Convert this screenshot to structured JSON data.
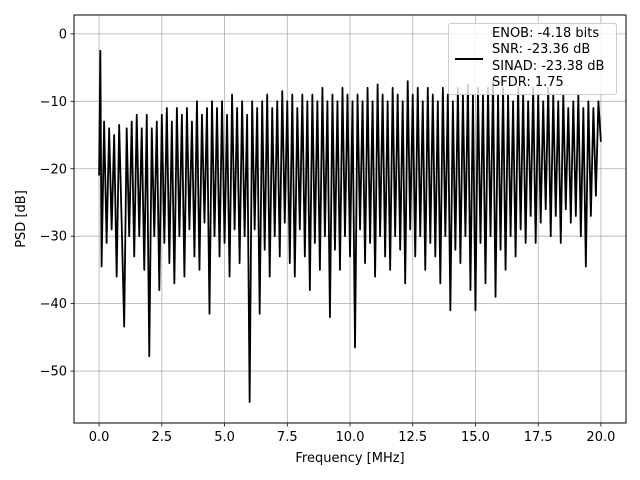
{
  "chart_data": {
    "type": "line",
    "xlabel": "Frequency [MHz]",
    "ylabel": "PSD [dB]",
    "xlim": [
      -1.0,
      21.0
    ],
    "ylim": [
      -57.7,
      2.8
    ],
    "xticks": [
      {
        "value": 0,
        "label": "0.0"
      },
      2.5,
      {
        "value": 5,
        "label": "5.0"
      },
      7.5,
      {
        "value": 10,
        "label": "10.0"
      },
      12.5,
      {
        "value": 15,
        "label": "15.0"
      },
      17.5,
      {
        "value": 20,
        "label": "20.0"
      }
    ],
    "yticks": [
      {
        "value": -50,
        "label": "−50"
      },
      {
        "value": -40,
        "label": "−40"
      },
      {
        "value": -30,
        "label": "−30"
      },
      {
        "value": -20,
        "label": "−20"
      },
      {
        "value": -10,
        "label": "−10"
      },
      0
    ],
    "grid": true,
    "legend": "upper right",
    "x": [
      0,
      0.05,
      0.1,
      0.2,
      0.3,
      0.4,
      0.5,
      0.6,
      0.7,
      0.8,
      0.9,
      1.0,
      1.1,
      1.2,
      1.3,
      1.4,
      1.5,
      1.6,
      1.7,
      1.8,
      1.9,
      2.0,
      2.1,
      2.2,
      2.3,
      2.4,
      2.5,
      2.6,
      2.7,
      2.8,
      2.9,
      3.0,
      3.1,
      3.2,
      3.3,
      3.4,
      3.5,
      3.6,
      3.7,
      3.8,
      3.9,
      4.0,
      4.1,
      4.2,
      4.3,
      4.4,
      4.5,
      4.6,
      4.7,
      4.8,
      4.9,
      5.0,
      5.1,
      5.2,
      5.3,
      5.4,
      5.5,
      5.6,
      5.7,
      5.8,
      5.9,
      6.0,
      6.1,
      6.2,
      6.3,
      6.4,
      6.5,
      6.6,
      6.7,
      6.8,
      6.9,
      7.0,
      7.1,
      7.2,
      7.3,
      7.4,
      7.5,
      7.6,
      7.7,
      7.8,
      7.9,
      8.0,
      8.1,
      8.2,
      8.3,
      8.4,
      8.5,
      8.6,
      8.7,
      8.8,
      8.9,
      9.0,
      9.1,
      9.2,
      9.3,
      9.4,
      9.5,
      9.6,
      9.7,
      9.8,
      9.9,
      10.0,
      10.1,
      10.2,
      10.3,
      10.4,
      10.5,
      10.6,
      10.7,
      10.8,
      10.9,
      11.0,
      11.1,
      11.2,
      11.3,
      11.4,
      11.5,
      11.6,
      11.7,
      11.8,
      11.9,
      12.0,
      12.1,
      12.2,
      12.3,
      12.4,
      12.5,
      12.6,
      12.7,
      12.8,
      12.9,
      13.0,
      13.1,
      13.2,
      13.3,
      13.4,
      13.5,
      13.6,
      13.7,
      13.8,
      13.9,
      14.0,
      14.1,
      14.2,
      14.3,
      14.4,
      14.5,
      14.6,
      14.7,
      14.8,
      14.9,
      15.0,
      15.1,
      15.2,
      15.3,
      15.4,
      15.5,
      15.6,
      15.7,
      15.8,
      15.9,
      16.0,
      16.1,
      16.2,
      16.3,
      16.4,
      16.5,
      16.6,
      16.7,
      16.8,
      16.9,
      17.0,
      17.1,
      17.2,
      17.3,
      17.4,
      17.5,
      17.6,
      17.7,
      17.8,
      17.9,
      18.0,
      18.1,
      18.2,
      18.3,
      18.4,
      18.5,
      18.6,
      18.7,
      18.8,
      18.9,
      19.0,
      19.1,
      19.2,
      19.3,
      19.4,
      19.5,
      19.6,
      19.7,
      19.8,
      19.9,
      20.0
    ],
    "series": [
      {
        "name": "ENOB: -4.18 bits\nSNR: -23.36 dB\nSINAD: -23.38 dB\nSFDR: 1.75",
        "color": "#000000",
        "values": [
          -21,
          -2.5,
          -34.5,
          -13,
          -31,
          -14,
          -29,
          -15,
          -36,
          -13.5,
          -28,
          -43.4,
          -14,
          -30,
          -13,
          -33,
          -12,
          -30,
          -14,
          -35,
          -12,
          -47.8,
          -14,
          -30,
          -13,
          -38,
          -12,
          -31,
          -11,
          -34,
          -13,
          -37,
          -11,
          -30,
          -12,
          -36,
          -11,
          -29,
          -13,
          -33,
          -10,
          -35,
          -12,
          -28,
          -11,
          -41.5,
          -10,
          -30,
          -11,
          -33,
          -10,
          -31,
          -12,
          -36,
          -9,
          -29,
          -11,
          -34,
          -10,
          -30,
          -12,
          -54.6,
          -10,
          -29,
          -11,
          -41.5,
          -10,
          -32,
          -9,
          -36,
          -11,
          -30,
          -10,
          -33,
          -8.5,
          -28,
          -10,
          -34,
          -9,
          -36,
          -11,
          -29,
          -9,
          -33,
          -10,
          -38,
          -9,
          -31,
          -10,
          -35,
          -8,
          -30,
          -10,
          -42,
          -9,
          -32,
          -10,
          -35,
          -8,
          -30,
          -9,
          -33,
          -10,
          -46.5,
          -9,
          -29,
          -10,
          -34,
          -8,
          -31,
          -10,
          -36,
          -7.5,
          -30,
          -9,
          -33,
          -10,
          -35,
          -8,
          -30,
          -9,
          -32,
          -10,
          -37,
          -7,
          -29,
          -9,
          -33,
          -8,
          -30,
          -10,
          -35,
          -8,
          -31,
          -9,
          -33,
          -10,
          -37,
          -8,
          -30,
          -9,
          -41,
          -10,
          -32,
          -8,
          -34,
          -9,
          -30,
          -7.5,
          -38,
          -9,
          -41,
          -8,
          -31,
          -9,
          -37,
          -8,
          -30,
          -7,
          -39,
          -9,
          -32,
          -8,
          -35,
          -9,
          -30,
          -10,
          -33,
          -8,
          -29,
          -9,
          -31,
          -10,
          -27,
          -8,
          -31,
          -9,
          -28,
          -10,
          -26,
          -8,
          -30,
          -9,
          -27,
          -10,
          -31,
          -9,
          -26,
          -11,
          -28,
          -10,
          -27,
          -9,
          -30,
          -11,
          -34.5,
          -10,
          -27,
          -11,
          -24,
          -10,
          -16
        ]
      }
    ]
  }
}
